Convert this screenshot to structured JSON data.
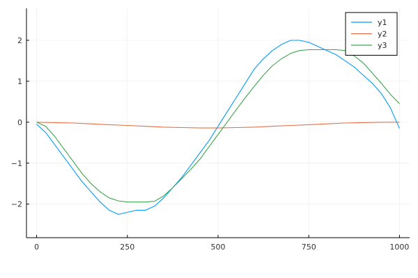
{
  "chart_data": {
    "type": "line",
    "title": "",
    "xlabel": "",
    "ylabel": "",
    "xlim": [
      -28,
      1028
    ],
    "ylim": [
      -2.82,
      2.78
    ],
    "x_ticks": [
      {
        "value": 0,
        "label": "0"
      },
      {
        "value": 250,
        "label": "250"
      },
      {
        "value": 500,
        "label": "500"
      },
      {
        "value": 750,
        "label": "750"
      },
      {
        "value": 1000,
        "label": "1000"
      }
    ],
    "y_ticks": [
      {
        "value": -2,
        "label": "−2"
      },
      {
        "value": -1,
        "label": "−1"
      },
      {
        "value": 0,
        "label": "0"
      },
      {
        "value": 1,
        "label": "1"
      },
      {
        "value": 2,
        "label": "2"
      }
    ],
    "grid": true,
    "legend_position": "top-right",
    "series": [
      {
        "name": "y1",
        "color": "#009af9",
        "x": [
          0,
          25,
          50,
          75,
          100,
          125,
          150,
          175,
          200,
          225,
          250,
          275,
          300,
          325,
          350,
          375,
          400,
          425,
          450,
          475,
          500,
          525,
          550,
          575,
          600,
          625,
          650,
          675,
          700,
          725,
          750,
          775,
          800,
          825,
          850,
          875,
          900,
          925,
          950,
          975,
          1000
        ],
        "y": [
          -0.05,
          -0.25,
          -0.55,
          -0.85,
          -1.15,
          -1.45,
          -1.7,
          -1.95,
          -2.15,
          -2.25,
          -2.2,
          -2.15,
          -2.15,
          -2.05,
          -1.85,
          -1.6,
          -1.35,
          -1.05,
          -0.75,
          -0.45,
          -0.1,
          0.25,
          0.6,
          0.95,
          1.3,
          1.55,
          1.75,
          1.9,
          2.0,
          2.0,
          1.95,
          1.85,
          1.75,
          1.65,
          1.5,
          1.35,
          1.15,
          0.95,
          0.7,
          0.35,
          -0.15
        ]
      },
      {
        "name": "y2",
        "color": "#e26f46",
        "x": [
          0,
          50,
          100,
          150,
          200,
          250,
          300,
          350,
          400,
          450,
          500,
          550,
          600,
          650,
          700,
          750,
          800,
          850,
          900,
          950,
          1000
        ],
        "y": [
          0.0,
          -0.01,
          -0.02,
          -0.04,
          -0.06,
          -0.08,
          -0.1,
          -0.12,
          -0.13,
          -0.14,
          -0.14,
          -0.13,
          -0.12,
          -0.1,
          -0.08,
          -0.06,
          -0.04,
          -0.02,
          -0.01,
          0.0,
          0.0
        ]
      },
      {
        "name": "y3",
        "color": "#3da44d",
        "x": [
          0,
          25,
          50,
          75,
          100,
          125,
          150,
          175,
          200,
          225,
          250,
          275,
          300,
          325,
          350,
          375,
          400,
          425,
          450,
          475,
          500,
          525,
          550,
          575,
          600,
          625,
          650,
          675,
          700,
          725,
          750,
          775,
          800,
          825,
          850,
          875,
          900,
          925,
          950,
          975,
          1000
        ],
        "y": [
          0.0,
          -0.1,
          -0.35,
          -0.65,
          -0.95,
          -1.25,
          -1.5,
          -1.7,
          -1.85,
          -1.92,
          -1.95,
          -1.95,
          -1.95,
          -1.93,
          -1.8,
          -1.6,
          -1.38,
          -1.15,
          -0.9,
          -0.6,
          -0.3,
          0.0,
          0.3,
          0.6,
          0.88,
          1.15,
          1.38,
          1.55,
          1.68,
          1.75,
          1.77,
          1.77,
          1.77,
          1.77,
          1.75,
          1.62,
          1.45,
          1.2,
          0.95,
          0.68,
          0.45
        ]
      }
    ]
  }
}
